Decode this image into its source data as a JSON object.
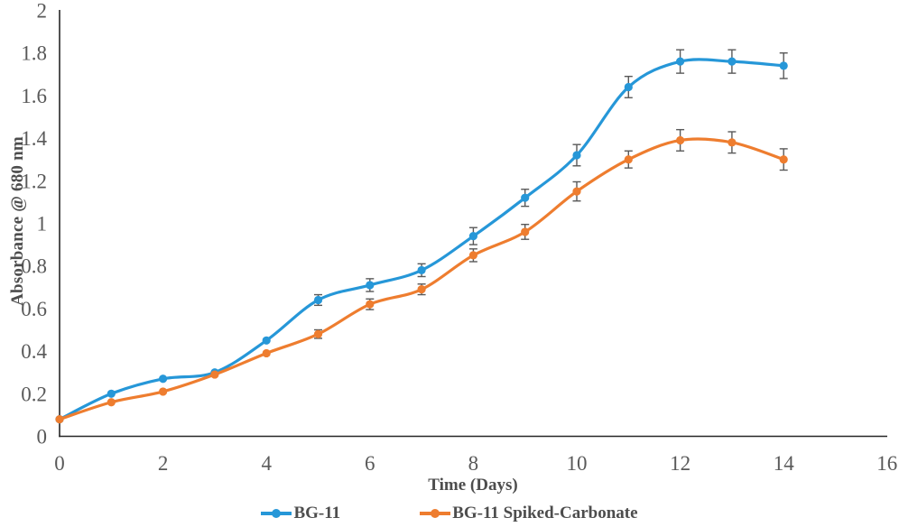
{
  "colors": {
    "series_blue": "#2697D8",
    "series_orange": "#EE7D2F",
    "axis_line": "#262626",
    "tick_label": "#595959",
    "error_bar": "#595959"
  },
  "chart_data": {
    "type": "line",
    "title": "",
    "xlabel": "Time (Days)",
    "ylabel": "Absorbance @ 680 nm",
    "x": [
      0,
      1,
      2,
      3,
      4,
      5,
      6,
      7,
      8,
      9,
      10,
      11,
      12,
      13,
      14
    ],
    "xlim": [
      0,
      16
    ],
    "ylim": [
      0,
      2
    ],
    "x_ticks": [
      "0",
      "2",
      "4",
      "6",
      "8",
      "10",
      "12",
      "14",
      "16"
    ],
    "y_ticks": [
      "0",
      "0.2",
      "0.4",
      "0.6",
      "0.8",
      "1",
      "1.2",
      "1.4",
      "1.6",
      "1.8",
      "2"
    ],
    "grid": false,
    "legend_position": "bottom-center",
    "marker": "circle",
    "line_style": "smooth",
    "error_bars": true,
    "series": [
      {
        "name": "BG-11",
        "color": "#2697D8",
        "values": [
          0.08,
          0.2,
          0.27,
          0.3,
          0.45,
          0.64,
          0.71,
          0.78,
          0.94,
          1.12,
          1.32,
          1.64,
          1.76,
          1.76,
          1.74
        ],
        "errors": [
          0,
          0,
          0,
          0,
          0,
          0.025,
          0.03,
          0.03,
          0.04,
          0.04,
          0.05,
          0.05,
          0.055,
          0.055,
          0.06
        ]
      },
      {
        "name": "BG-11 Spiked-Carbonate",
        "color": "#EE7D2F",
        "values": [
          0.08,
          0.16,
          0.21,
          0.29,
          0.39,
          0.48,
          0.62,
          0.69,
          0.85,
          0.96,
          1.15,
          1.3,
          1.39,
          1.38,
          1.3
        ],
        "errors": [
          0,
          0,
          0,
          0,
          0,
          0.02,
          0.025,
          0.025,
          0.03,
          0.035,
          0.045,
          0.04,
          0.05,
          0.05,
          0.05
        ]
      }
    ]
  }
}
